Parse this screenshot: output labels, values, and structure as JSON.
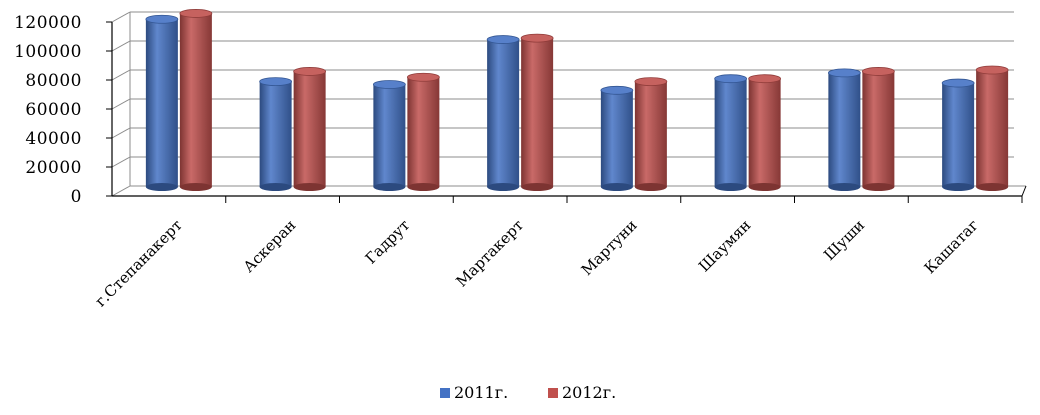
{
  "chart_data": {
    "type": "bar",
    "title": "",
    "xlabel": "",
    "ylabel": "",
    "ylim": [
      0,
      120000
    ],
    "yticks": [
      "0",
      "20000",
      "40000",
      "60000",
      "80000",
      "100000",
      "120000"
    ],
    "grid": true,
    "legend_position": "bottom",
    "categories": [
      "г.Степанакерт",
      "Аскеран",
      "Гадрут",
      "Мартакерт",
      "Мартуни",
      "Шаумян",
      "Шуши",
      "Кашатаг"
    ],
    "series": [
      {
        "name": "2011г.",
        "color": "#4472C4",
        "values": [
          115000,
          72000,
          70000,
          101000,
          66000,
          74000,
          78000,
          71000
        ]
      },
      {
        "name": "2012г.",
        "color": "#C0504D",
        "values": [
          119000,
          79000,
          75000,
          102000,
          72000,
          74000,
          79000,
          80000
        ]
      }
    ]
  }
}
